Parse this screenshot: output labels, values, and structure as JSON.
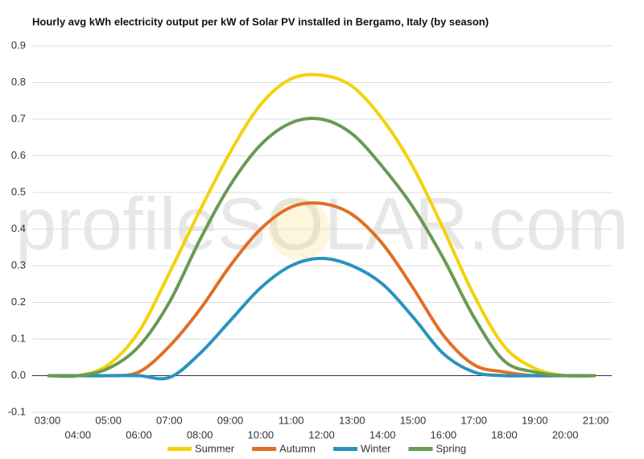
{
  "chart_data": {
    "type": "line",
    "title": "Hourly avg kWh electricity output per kW of Solar PV installed in Bergamo, Italy (by season)",
    "watermark": "profileSOLAR.com",
    "categories": [
      "03:00",
      "04:00",
      "05:00",
      "06:00",
      "07:00",
      "08:00",
      "09:00",
      "10:00",
      "11:00",
      "12:00",
      "13:00",
      "14:00",
      "15:00",
      "16:00",
      "17:00",
      "18:00",
      "19:00",
      "20:00",
      "21:00"
    ],
    "series": [
      {
        "name": "Summer",
        "color": "#f5d10a",
        "values": [
          0,
          0,
          0.03,
          0.12,
          0.28,
          0.45,
          0.61,
          0.74,
          0.81,
          0.82,
          0.79,
          0.7,
          0.57,
          0.4,
          0.22,
          0.08,
          0.02,
          0,
          0
        ]
      },
      {
        "name": "Autumn",
        "color": "#e26f25",
        "values": [
          0,
          0,
          0,
          0.01,
          0.08,
          0.18,
          0.3,
          0.4,
          0.46,
          0.47,
          0.44,
          0.36,
          0.24,
          0.11,
          0.03,
          0.01,
          0,
          0,
          0
        ]
      },
      {
        "name": "Winter",
        "color": "#2a93c0",
        "values": [
          0,
          0,
          0,
          0,
          -0.005,
          0.06,
          0.15,
          0.24,
          0.3,
          0.32,
          0.3,
          0.25,
          0.16,
          0.06,
          0.01,
          0,
          0,
          0,
          0
        ]
      },
      {
        "name": "Spring",
        "color": "#6a9a55",
        "values": [
          0,
          0,
          0.02,
          0.08,
          0.2,
          0.37,
          0.52,
          0.63,
          0.69,
          0.7,
          0.66,
          0.57,
          0.46,
          0.32,
          0.16,
          0.04,
          0.01,
          0,
          0
        ]
      }
    ],
    "ylim": [
      -0.1,
      0.9
    ],
    "yticks": [
      -0.1,
      {
        "value": 0,
        "label": "0.0"
      },
      0.1,
      0.2,
      0.3,
      0.4,
      0.5,
      0.6,
      0.7,
      0.8,
      0.9
    ],
    "grid": true,
    "legend": "bottom"
  }
}
